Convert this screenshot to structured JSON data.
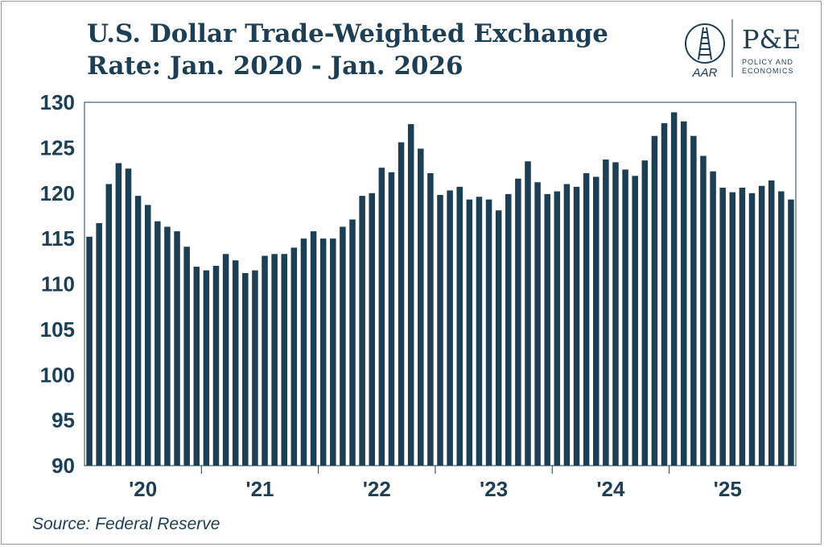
{
  "title_line1": "U.S. Dollar Trade-Weighted Exchange",
  "title_line2": "Rate: Jan. 2020 - Jan. 2026",
  "source": "Source: Federal Reserve",
  "logo": {
    "aar_text": "AAR",
    "pe_text": "P&E",
    "pe_subtitle_1": "POLICY AND",
    "pe_subtitle_2": "ECONOMICS"
  },
  "colors": {
    "bar": "#1c3f55",
    "title": "#1c3f55",
    "axis": "#1c3f55"
  },
  "chart_data": {
    "type": "bar",
    "title": "U.S. Dollar Trade-Weighted Exchange Rate: Jan. 2020 - Jan. 2026",
    "xlabel": "",
    "ylabel": "",
    "ylim": [
      90,
      130
    ],
    "yticks": [
      90,
      95,
      100,
      105,
      110,
      115,
      120,
      125,
      130
    ],
    "xtick_labels": [
      "'20",
      "'21",
      "'22",
      "'23",
      "'24",
      "'25"
    ],
    "grid": false,
    "categories": [
      "Jan 2020",
      "Feb 2020",
      "Mar 2020",
      "Apr 2020",
      "May 2020",
      "Jun 2020",
      "Jul 2020",
      "Aug 2020",
      "Sep 2020",
      "Oct 2020",
      "Nov 2020",
      "Dec 2020",
      "Jan 2021",
      "Feb 2021",
      "Mar 2021",
      "Apr 2021",
      "May 2021",
      "Jun 2021",
      "Jul 2021",
      "Aug 2021",
      "Sep 2021",
      "Oct 2021",
      "Nov 2021",
      "Dec 2021",
      "Jan 2022",
      "Feb 2022",
      "Mar 2022",
      "Apr 2022",
      "May 2022",
      "Jun 2022",
      "Jul 2022",
      "Aug 2022",
      "Sep 2022",
      "Oct 2022",
      "Nov 2022",
      "Dec 2022",
      "Jan 2023",
      "Feb 2023",
      "Mar 2023",
      "Apr 2023",
      "May 2023",
      "Jun 2023",
      "Jul 2023",
      "Aug 2023",
      "Sep 2023",
      "Oct 2023",
      "Nov 2023",
      "Dec 2023",
      "Jan 2024",
      "Feb 2024",
      "Mar 2024",
      "Apr 2024",
      "May 2024",
      "Jun 2024",
      "Jul 2024",
      "Aug 2024",
      "Sep 2024",
      "Oct 2024",
      "Nov 2024",
      "Dec 2024",
      "Jan 2025",
      "Feb 2025",
      "Mar 2025",
      "Apr 2025",
      "May 2025",
      "Jun 2025",
      "Jul 2025",
      "Aug 2025",
      "Sep 2025",
      "Oct 2025",
      "Nov 2025",
      "Dec 2025",
      "Jan 2026"
    ],
    "values": [
      115.2,
      116.7,
      121.0,
      123.3,
      122.7,
      119.7,
      118.7,
      116.9,
      116.3,
      115.8,
      114.1,
      111.9,
      111.5,
      112.0,
      113.3,
      112.6,
      111.2,
      111.5,
      113.1,
      113.3,
      113.3,
      114.0,
      115.0,
      115.8,
      115.0,
      115.0,
      116.3,
      117.1,
      119.7,
      120.0,
      122.8,
      122.3,
      125.6,
      127.6,
      124.9,
      122.2,
      119.8,
      120.3,
      120.7,
      119.3,
      119.6,
      119.3,
      118.1,
      119.9,
      121.6,
      123.5,
      121.2,
      119.9,
      120.2,
      121.0,
      120.7,
      122.2,
      121.8,
      123.7,
      123.4,
      122.6,
      121.9,
      123.6,
      126.3,
      127.7,
      128.9,
      127.9,
      126.3,
      124.1,
      122.4,
      120.6,
      120.1,
      120.6,
      120.0,
      120.8,
      121.4,
      120.2,
      119.3
    ]
  }
}
